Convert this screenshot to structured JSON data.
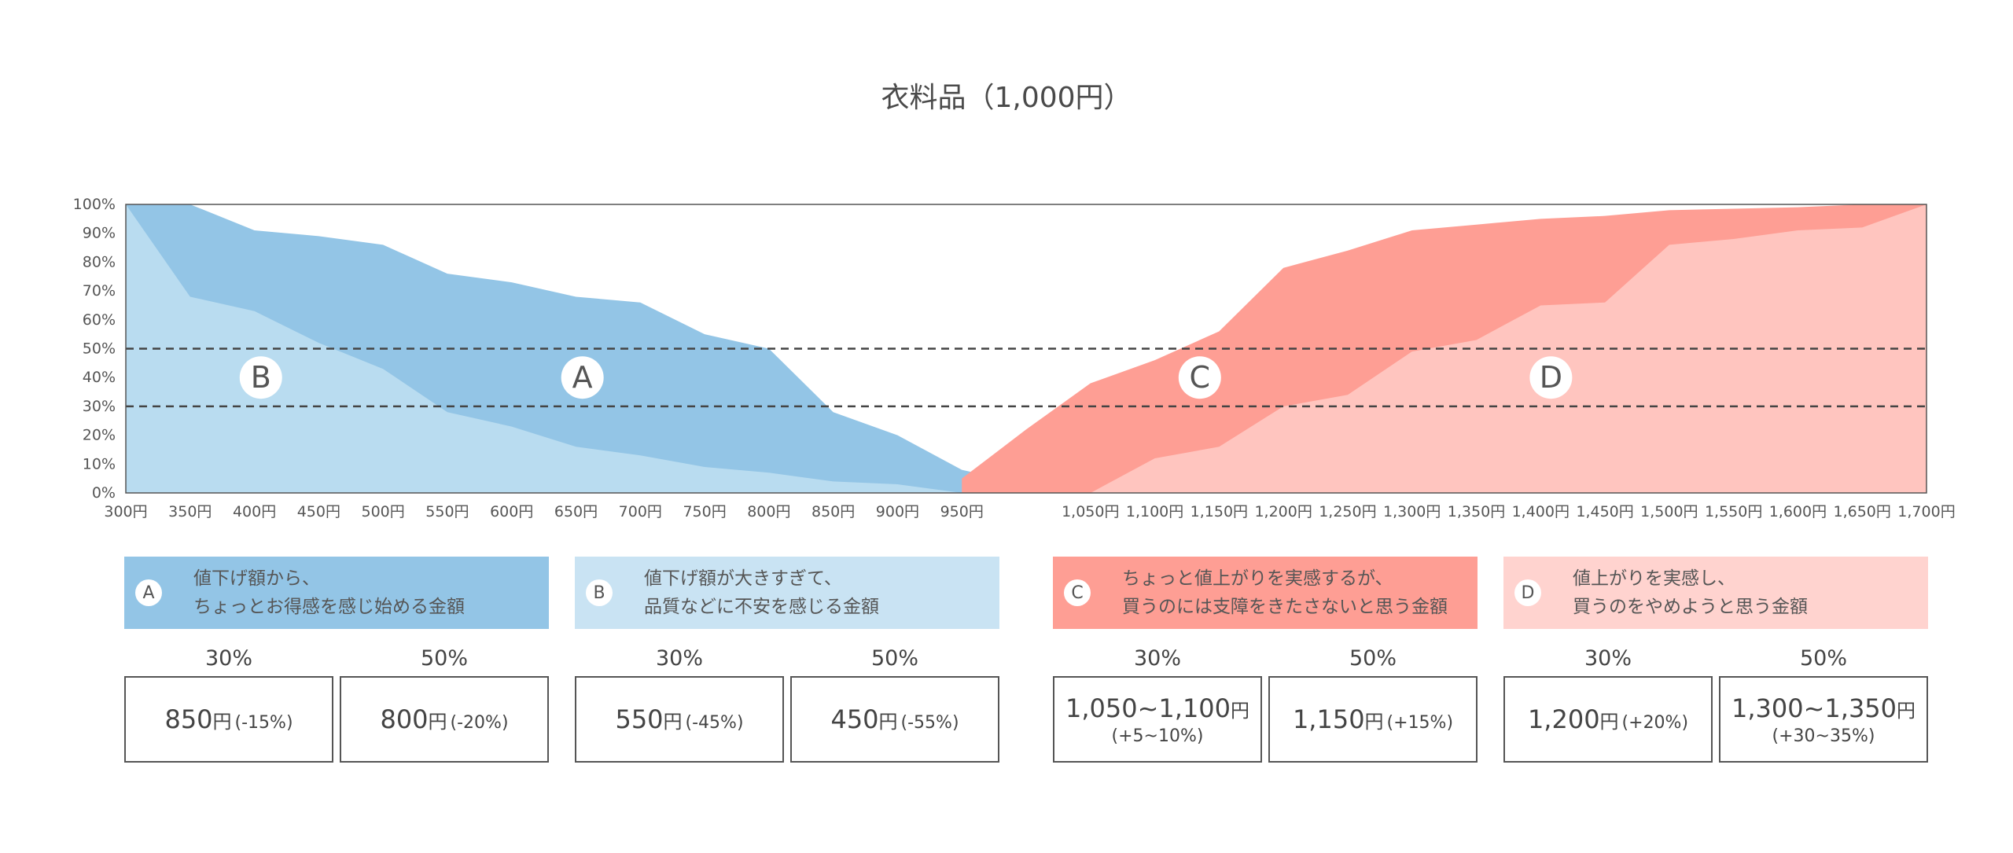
{
  "chart_data": {
    "type": "area",
    "title": "衣料品（1,000円）",
    "x_ticks": [
      "300円",
      "350円",
      "400円",
      "450円",
      "500円",
      "550円",
      "600円",
      "650円",
      "700円",
      "750円",
      "800円",
      "850円",
      "900円",
      "950円",
      "1,050円",
      "1,100円",
      "1,150円",
      "1,200円",
      "1,250円",
      "1,300円",
      "1,350円",
      "1,400円",
      "1,450円",
      "1,500円",
      "1,550円",
      "1,600円",
      "1,650円",
      "1,700円"
    ],
    "y_ticks": [
      "0%",
      "10%",
      "20%",
      "30%",
      "40%",
      "50%",
      "60%",
      "70%",
      "80%",
      "90%",
      "100%"
    ],
    "ylim": [
      0,
      100
    ],
    "reference_lines": [
      30,
      50
    ],
    "series": [
      {
        "name": "A",
        "color": "#93c5e6",
        "x": [
          300,
          350,
          400,
          450,
          500,
          550,
          600,
          650,
          700,
          750,
          800,
          850,
          900,
          950,
          1000,
          1050
        ],
        "values": [
          100,
          100,
          91,
          89,
          86,
          76,
          73,
          68,
          66,
          55,
          50,
          28,
          20,
          8,
          3,
          0
        ]
      },
      {
        "name": "B",
        "color": "#b9dcf0",
        "x": [
          300,
          350,
          400,
          450,
          500,
          550,
          600,
          650,
          700,
          750,
          800,
          850,
          900,
          950,
          1000,
          1050
        ],
        "values": [
          100,
          68,
          63,
          52,
          43,
          28,
          23,
          16,
          13,
          9,
          7,
          4,
          3,
          0,
          0,
          0
        ]
      },
      {
        "name": "C",
        "color": "#fe9e94",
        "x": [
          950,
          1000,
          1050,
          1100,
          1150,
          1200,
          1250,
          1300,
          1350,
          1400,
          1450,
          1500,
          1550,
          1600,
          1650,
          1700
        ],
        "values": [
          5,
          22,
          38,
          46,
          56,
          78,
          84,
          91,
          93,
          95,
          96,
          98,
          98.5,
          99,
          100,
          100
        ]
      },
      {
        "name": "D",
        "color": "#ffc5bf",
        "x": [
          1050,
          1100,
          1150,
          1200,
          1250,
          1300,
          1350,
          1400,
          1450,
          1500,
          1550,
          1600,
          1650,
          1700
        ],
        "values": [
          0,
          12,
          16,
          30,
          34,
          49,
          53,
          65,
          66,
          86,
          88,
          91,
          92,
          100
        ]
      }
    ],
    "markers": [
      {
        "label": "B",
        "x": 405,
        "y": 40
      },
      {
        "label": "A",
        "x": 655,
        "y": 40
      },
      {
        "label": "C",
        "x": 1135,
        "y": 40
      },
      {
        "label": "D",
        "x": 1408,
        "y": 40
      }
    ]
  },
  "legend": [
    {
      "badge": "A",
      "line1": "値下げ額から、",
      "line2": "ちょっとお得感を感じ始める金額",
      "color": "#93c5e6"
    },
    {
      "badge": "B",
      "line1": "値下げ額が大きすぎて、",
      "line2": "品質などに不安を感じる金額",
      "color": "#c9e3f3"
    },
    {
      "badge": "C",
      "line1": "ちょっと値上がりを実感するが、",
      "line2": "買うのには支障をきたさないと思う金額",
      "color": "#fe9e94"
    },
    {
      "badge": "D",
      "line1": "値上がりを実感し、",
      "line2": "買うのをやめようと思う金額",
      "color": "#ffd3cf"
    }
  ],
  "pct_labels": [
    "30%",
    "50%"
  ],
  "values": [
    {
      "main": "850",
      "unit": "円",
      "pct": "(-15%)",
      "sub": ""
    },
    {
      "main": "800",
      "unit": "円",
      "pct": "(-20%)",
      "sub": ""
    },
    {
      "main": "550",
      "unit": "円",
      "pct": "(-45%)",
      "sub": ""
    },
    {
      "main": "450",
      "unit": "円",
      "pct": "(-55%)",
      "sub": ""
    },
    {
      "main": "1,050~1,100",
      "unit": "円",
      "pct": "",
      "sub": "(+5~10%)"
    },
    {
      "main": "1,150",
      "unit": "円",
      "pct": "(+15%)",
      "sub": ""
    },
    {
      "main": "1,200",
      "unit": "円",
      "pct": "(+20%)",
      "sub": ""
    },
    {
      "main": "1,300~1,350",
      "unit": "円",
      "pct": "",
      "sub": "(+30~35%)"
    }
  ]
}
